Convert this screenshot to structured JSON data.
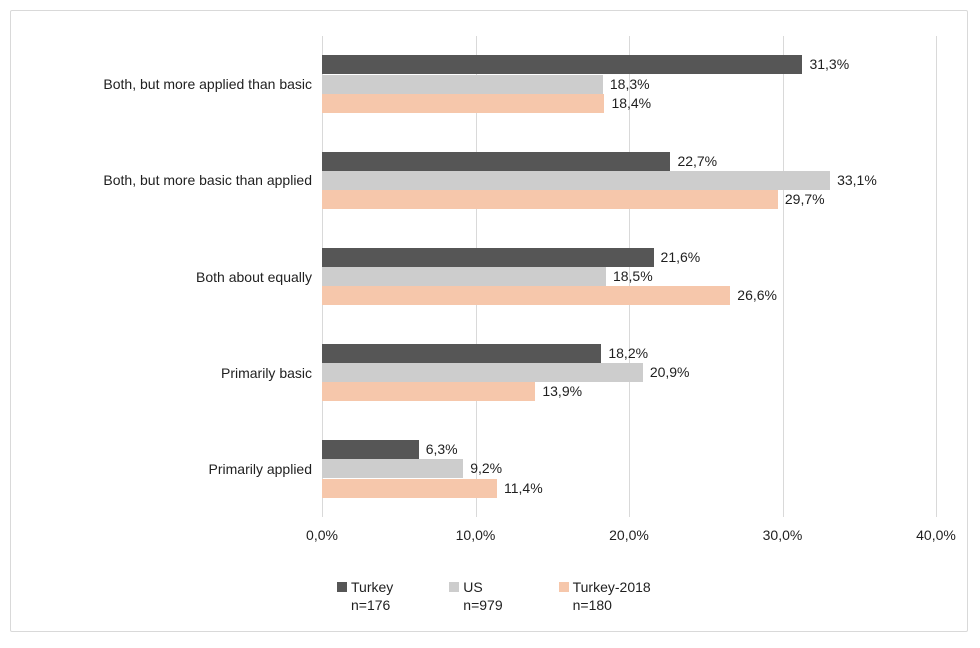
{
  "chart_data": {
    "type": "bar",
    "orientation": "horizontal",
    "title": "",
    "categories": [
      "Both, but more applied than basic",
      "Both, but more basic than applied",
      "Both about equally",
      "Primarily basic",
      "Primarily applied"
    ],
    "series": [
      {
        "name": "Turkey",
        "n_label": "n=176",
        "color": "#565656",
        "values": [
          31.3,
          22.7,
          21.6,
          18.2,
          6.3
        ],
        "labels": [
          "31,3%",
          "22,7%",
          "21,6%",
          "18,2%",
          "6,3%"
        ]
      },
      {
        "name": "US",
        "n_label": "n=979",
        "color": "#cdcdcd",
        "values": [
          18.3,
          33.1,
          18.5,
          20.9,
          9.2
        ],
        "labels": [
          "18,3%",
          "33,1%",
          "18,5%",
          "20,9%",
          "9,2%"
        ]
      },
      {
        "name": "Turkey-2018",
        "n_label": "n=180",
        "color": "#f6c7ab",
        "values": [
          18.4,
          29.7,
          26.6,
          13.9,
          11.4
        ],
        "labels": [
          "18,4%",
          "29,7%",
          "26,6%",
          "13,9%",
          "11,4%"
        ]
      }
    ],
    "x_axis": {
      "min": 0,
      "max": 40,
      "tick_step": 10,
      "tick_labels": [
        "0,0%",
        "10,0%",
        "20,0%",
        "30,0%",
        "40,0%"
      ]
    },
    "grid": true,
    "legend_position": "bottom",
    "colors": {
      "gridline": "#d9d9d9",
      "frame_border": "#d9d9d9",
      "text": "#1f1f1f",
      "background": "#ffffff"
    }
  }
}
